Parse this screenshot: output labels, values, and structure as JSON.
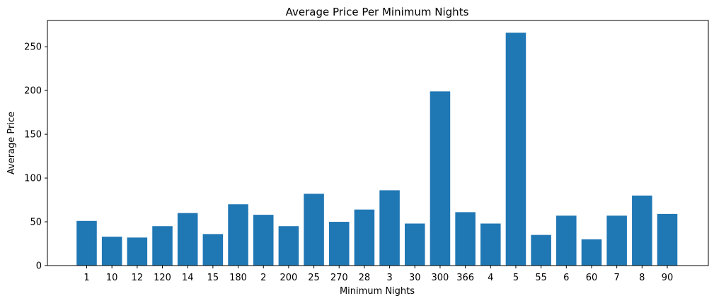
{
  "chart_data": {
    "type": "bar",
    "title": "Average Price Per Minimum Nights",
    "xlabel": "Minimum Nights",
    "ylabel": "Average Price",
    "categories": [
      "1",
      "10",
      "12",
      "120",
      "14",
      "15",
      "180",
      "2",
      "200",
      "25",
      "270",
      "28",
      "3",
      "30",
      "300",
      "366",
      "4",
      "5",
      "55",
      "6",
      "60",
      "7",
      "8",
      "90"
    ],
    "values": [
      51,
      33,
      32,
      45,
      60,
      36,
      70,
      58,
      45,
      82,
      50,
      64,
      86,
      48,
      199,
      61,
      48,
      266,
      35,
      57,
      30,
      57,
      80,
      59
    ],
    "ylim": [
      0,
      280
    ],
    "yticks": [
      0,
      50,
      100,
      150,
      200,
      250
    ],
    "bar_color": "#1f77b4",
    "grid": false,
    "legend": "none"
  }
}
